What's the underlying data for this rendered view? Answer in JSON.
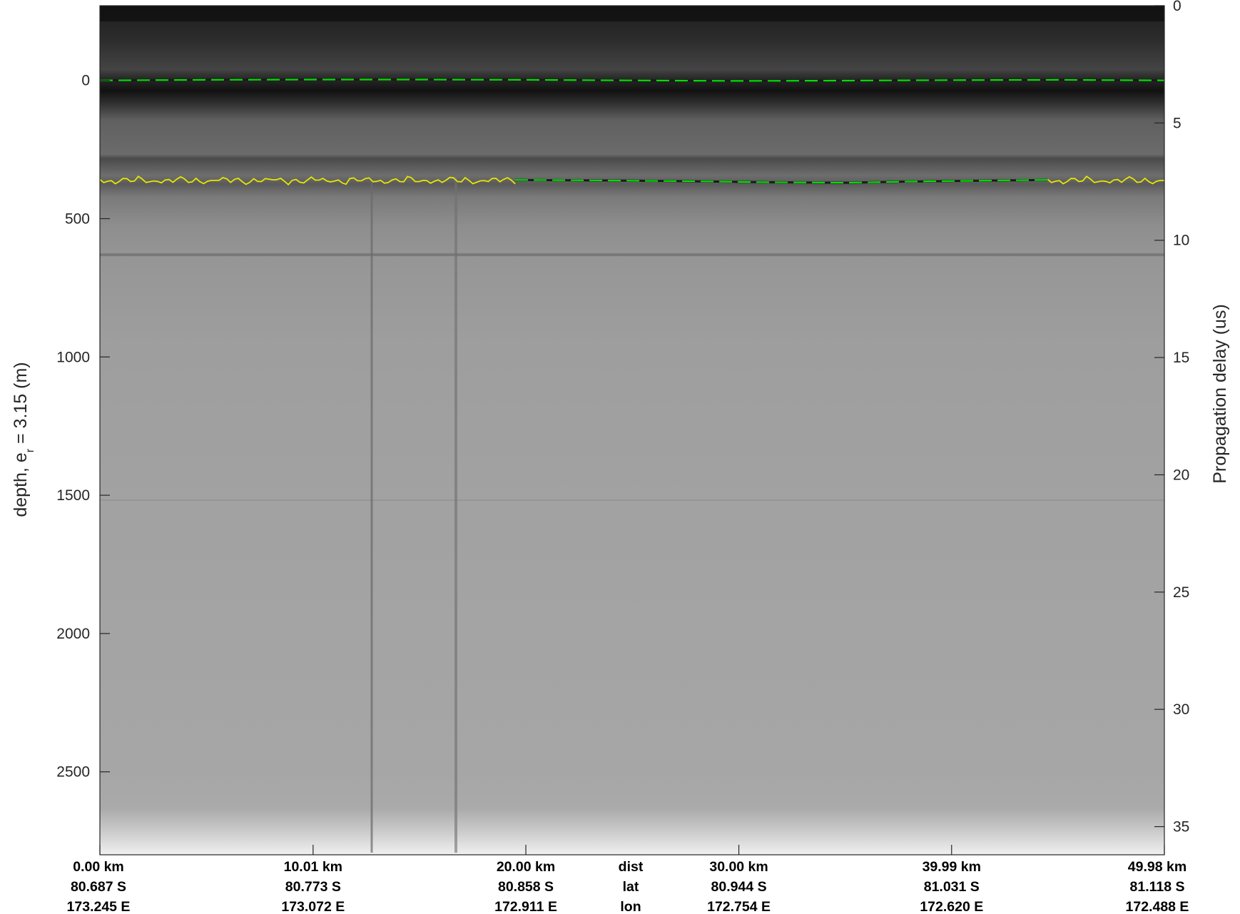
{
  "chart_data": {
    "type": "heatmap",
    "description_colormap": "grayscale",
    "left_axis": {
      "label_main": "depth, e",
      "label_sub": "r",
      "label_tail": " = 3.15 (m)",
      "ticks": [
        0,
        500,
        1000,
        1500,
        2000,
        2500
      ],
      "ylim": [
        -270,
        2800
      ],
      "reversed": true
    },
    "right_axis": {
      "label": "Propagation delay (us)",
      "ticks": [
        0,
        5,
        10,
        15,
        20,
        25,
        30,
        35
      ],
      "ylim": [
        0,
        36.2
      ],
      "reversed": true
    },
    "x_axis": {
      "xlim": [
        0,
        49.98
      ],
      "ticks": [
        0.0,
        10.01,
        20.0,
        30.0,
        39.99,
        49.98
      ],
      "row_labels": {
        "dist": "dist",
        "lat": "lat",
        "lon": "lon"
      },
      "dist_labels": [
        "0.00 km",
        "10.01 km",
        "20.00 km",
        "30.00 km",
        "39.99 km",
        "49.98 km"
      ],
      "lat_labels": [
        "80.687 S",
        "80.773 S",
        "80.858 S",
        "80.944 S",
        "81.031 S",
        "81.118 S"
      ],
      "lon_labels": [
        "173.245 E",
        "173.072 E",
        "172.911 E",
        "172.754 E",
        "172.620 E",
        "172.488 E"
      ]
    },
    "surface_layer": {
      "color": "#00e000",
      "style": "dashed",
      "x": [
        0,
        5,
        10,
        15,
        20,
        25,
        30,
        35,
        40,
        45,
        49.98
      ],
      "depth": [
        0,
        -2,
        -3,
        -3,
        -2,
        0,
        2,
        1,
        -1,
        -2,
        0
      ]
    },
    "bottom_layer_manual": {
      "color": "#00e000",
      "style": "dashed",
      "x": [
        19.5,
        24,
        28,
        31,
        35,
        38,
        42,
        44.5
      ],
      "depth": [
        360,
        362,
        365,
        368,
        370,
        366,
        362,
        360
      ]
    },
    "bottom_layer_auto": {
      "color": "#e6e600",
      "style": "jagged",
      "segments": [
        [
          0,
          19.5
        ],
        [
          44.5,
          49.98
        ]
      ],
      "depth": 362
    }
  }
}
